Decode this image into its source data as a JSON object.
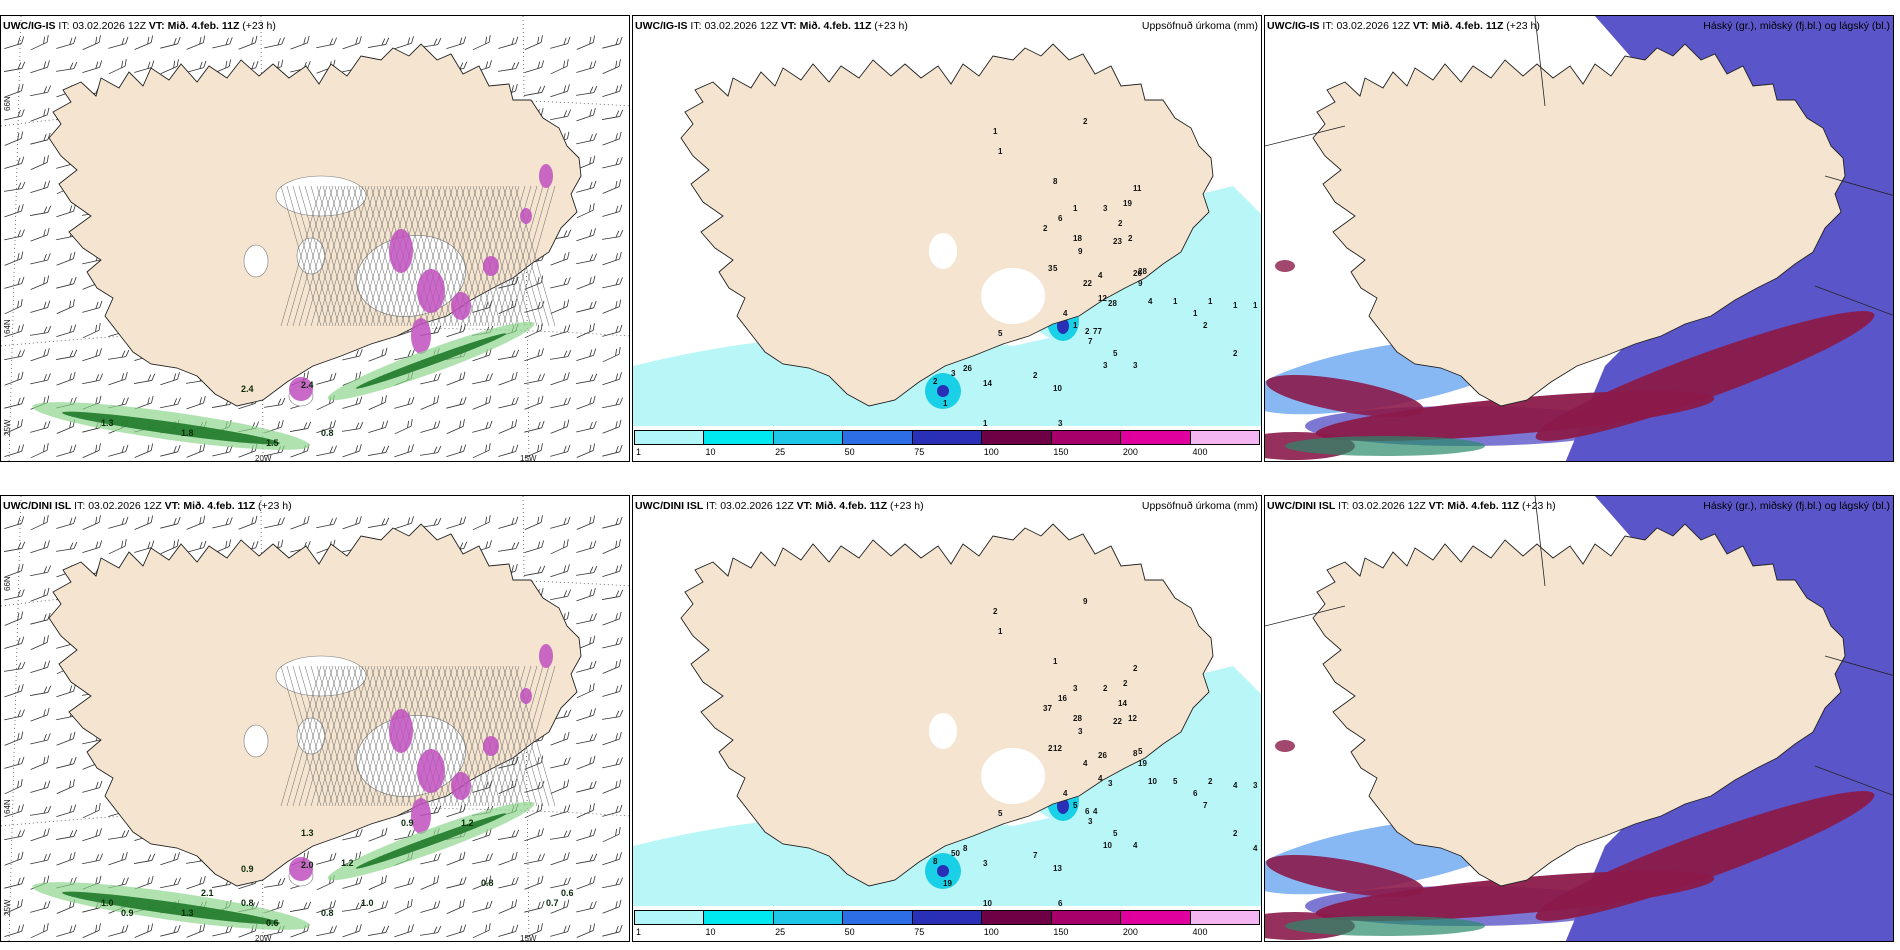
{
  "rows": [
    {
      "model": "UWC/IG-IS",
      "panels": [
        {
          "kind": "wind",
          "it_label": "IT:",
          "it": "03.02.2026 12Z",
          "vt_label": "VT:",
          "vt": "Mið. 4.feb. 11Z",
          "lead": "(+23 h)",
          "title": "",
          "lon_labels": [
            "20W",
            "15W"
          ],
          "lat_labels": [
            "66N",
            "64N",
            "25W"
          ],
          "labels": [
            "2.4",
            "2.4",
            "1.3",
            "1.8",
            "1.5",
            "0.8"
          ]
        },
        {
          "kind": "precip",
          "it_label": "IT:",
          "it": "03.02.2026 12Z",
          "vt_label": "VT:",
          "vt": "Mið. 4.feb. 11Z",
          "lead": "(+23 h)",
          "title": "Uppsöfnuð úrkoma (mm)",
          "labels": [
            "1",
            "1",
            "2",
            "8",
            "1",
            "3",
            "11",
            "19",
            "2",
            "23",
            "4",
            "28",
            "20",
            "9",
            "4",
            "1",
            "1",
            "1",
            "1",
            "2",
            "6",
            "18",
            "22",
            "12",
            "28",
            "9",
            "5",
            "2",
            "2",
            "3",
            "26",
            "14",
            "10",
            "1",
            "3",
            "5",
            "7",
            "5",
            "3",
            "1",
            "3",
            "2",
            "2",
            "77",
            "3",
            "4",
            "1",
            "1",
            "2",
            "2"
          ]
        },
        {
          "kind": "cloud",
          "it_label": "IT:",
          "it": "03.02.2026 12Z",
          "vt_label": "VT:",
          "vt": "Mið. 4.feb. 11Z",
          "lead": "(+23 h)",
          "title": "Háský (gr.), miðský (fj.bl.) og lágský (bl.)"
        }
      ]
    },
    {
      "model": "UWC/DINI ISL",
      "panels": [
        {
          "kind": "wind",
          "it_label": "IT:",
          "it": "03.02.2026 12Z",
          "vt_label": "VT:",
          "vt": "Mið. 4.feb. 11Z",
          "lead": "(+23 h)",
          "title": "",
          "lon_labels": [
            "20W",
            "15W"
          ],
          "lat_labels": [
            "66N",
            "64N",
            "25W"
          ],
          "labels": [
            "0.9",
            "2.0",
            "1.0",
            "1.3",
            "0.6",
            "0.8",
            "1.0",
            "0.9",
            "1.2",
            "1.3",
            "1.2",
            "2.1",
            "0.8",
            "0.9",
            "0.7",
            "0.6",
            "0.8"
          ]
        },
        {
          "kind": "precip",
          "it_label": "IT:",
          "it": "03.02.2026 12Z",
          "vt_label": "VT:",
          "vt": "Mið. 4.feb. 11Z",
          "lead": "(+23 h)",
          "title": "Uppsöfnuð úrkoma (mm)",
          "labels": [
            "2",
            "1",
            "9",
            "1",
            "3",
            "2",
            "2",
            "2",
            "14",
            "22",
            "26",
            "5",
            "8",
            "19",
            "10",
            "5",
            "2",
            "4",
            "3",
            "37",
            "16",
            "28",
            "4",
            "4",
            "3",
            "3",
            "12",
            "12",
            "6",
            "2",
            "8",
            "3",
            "13",
            "10",
            "6",
            "5",
            "3",
            "5",
            "10",
            "19",
            "50",
            "8",
            "7",
            "4",
            "4",
            "4",
            "5",
            "6",
            "7",
            "2",
            "4"
          ]
        },
        {
          "kind": "cloud",
          "it_label": "IT:",
          "it": "03.02.2026 12Z",
          "vt_label": "VT:",
          "vt": "Mið. 4.feb. 11Z",
          "lead": "(+23 h)",
          "title": "Háský (gr.), miðský (fj.bl.) og lágský (bl.)"
        }
      ]
    }
  ],
  "colorbar": {
    "ticks": [
      "1",
      "10",
      "25",
      "50",
      "75",
      "100",
      "150",
      "200",
      "400"
    ],
    "colors": [
      "#b3f6fa",
      "#00e8f0",
      "#1ec6e8",
      "#2d6de6",
      "#2a2fb8",
      "#6e0046",
      "#a8006a",
      "#e0009e",
      "#f4b6f0"
    ]
  },
  "colors": {
    "land": "#f5e5d0",
    "land_grey": "#d9c6b4",
    "precip_light": "#b8f6f8",
    "precip_mid": "#1ad0e6",
    "cloud_high": "#8b1a4a",
    "cloud_mid": "#5a55c8",
    "cloud_low": "#6aa6f0",
    "wind_green": "#1f7a2a",
    "purple": "#c050c0"
  }
}
